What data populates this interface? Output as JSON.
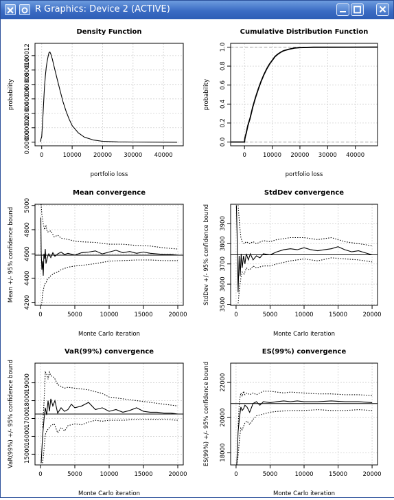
{
  "window": {
    "title": "R Graphics: Device 2 (ACTIVE)",
    "controls": [
      "close",
      "sticky",
      "minimize",
      "maximize",
      "close"
    ]
  },
  "chart_data": [
    {
      "type": "line",
      "title": "Density Function",
      "xlabel": "portfolio loss",
      "ylabel": "probability",
      "xlim": [
        -2200,
        46500
      ],
      "ylim": [
        -5e-06,
        0.000137
      ],
      "xticks": [
        0,
        10000,
        20000,
        30000,
        40000
      ],
      "xtick_labels": [
        "0",
        "10000",
        "20000",
        "30000",
        "40000"
      ],
      "yticks": [
        0,
        2e-05,
        4e-05,
        6e-05,
        8e-05,
        0.0001,
        0.00012
      ],
      "ytick_labels": [
        "0.00000",
        "0.00002",
        "0.00004",
        "0.00006",
        "0.00008",
        "0.00010",
        "0.00012"
      ],
      "grid": true,
      "series": [
        {
          "x": [
            -500,
            0,
            300,
            600,
            900,
            1200,
            1500,
            1800,
            2100,
            2400,
            2700,
            3000,
            3500,
            4000,
            5000,
            6000,
            7000,
            8000,
            9000,
            10000,
            12000,
            14000,
            17000,
            20000,
            25000,
            30000,
            35000,
            40000,
            44500
          ],
          "y": [
            5e-07,
            8e-06,
            2.8e-05,
            5.2e-05,
            7.5e-05,
            9.2e-05,
            0.000104,
            0.000112,
            0.000119,
            0.000124,
            0.000125,
            0.000122,
            0.000115,
            0.000106,
            8.9e-05,
            7.2e-05,
            5.6e-05,
            4.3e-05,
            3.2e-05,
            2.3e-05,
            1.3e-05,
            7e-06,
            3e-06,
            1.2e-06,
            4e-07,
            2e-07,
            1e-07,
            5e-08,
            0
          ]
        }
      ]
    },
    {
      "type": "line",
      "title": "Cumulative Distribution Function",
      "xlabel": "portfolio loss",
      "ylabel": "probability",
      "xlim": [
        -5000,
        48000
      ],
      "ylim": [
        -0.04,
        1.04
      ],
      "xticks": [
        0,
        10000,
        20000,
        30000,
        40000
      ],
      "xtick_labels": [
        "0",
        "10000",
        "20000",
        "30000",
        "40000"
      ],
      "yticks": [
        0,
        0.2,
        0.4,
        0.6,
        0.8,
        1.0
      ],
      "ytick_labels": [
        "0.0",
        "0.2",
        "0.4",
        "0.6",
        "0.8",
        "1.0"
      ],
      "grid": true,
      "reference_lines": [
        0,
        1
      ],
      "series": [
        {
          "x": [
            -5000,
            0,
            100,
            300,
            600,
            900,
            1200,
            1500,
            2000,
            2500,
            3000,
            3500,
            4000,
            5000,
            6000,
            7000,
            8000,
            9000,
            10000,
            11000,
            12000,
            13000,
            14000,
            15000,
            16000,
            17000,
            18000,
            20000,
            25000,
            48000
          ],
          "y": [
            0,
            0,
            0.03,
            0.06,
            0.09,
            0.13,
            0.17,
            0.2,
            0.25,
            0.31,
            0.37,
            0.42,
            0.47,
            0.56,
            0.64,
            0.71,
            0.77,
            0.82,
            0.86,
            0.9,
            0.925,
            0.945,
            0.96,
            0.97,
            0.978,
            0.984,
            0.99,
            0.995,
            0.999,
            1
          ]
        }
      ]
    },
    {
      "type": "line",
      "title": "Mean convergence",
      "xlabel": "Monte Carlo iteration",
      "ylabel": "Mean +/- 95% confidence bound",
      "xlim": [
        -800,
        20800
      ],
      "ylim": [
        4175,
        5010
      ],
      "xticks": [
        0,
        5000,
        10000,
        15000,
        20000
      ],
      "xtick_labels": [
        "0",
        "5000",
        "10000",
        "15000",
        "20000"
      ],
      "yticks": [
        4200,
        4400,
        4600,
        4800,
        5000
      ],
      "ytick_labels": [
        "4200",
        "4400",
        "4600",
        "4800",
        "5000"
      ],
      "grid": true,
      "reference_line": 4590,
      "series": [
        {
          "name": "estimate",
          "style": "solid",
          "x": [
            50,
            100,
            200,
            300,
            400,
            500,
            600,
            700,
            800,
            1000,
            1200,
            1500,
            1800,
            2100,
            2500,
            3000,
            3500,
            4000,
            5000,
            6000,
            7000,
            8000,
            9000,
            10000,
            11000,
            12000,
            13000,
            14000,
            15000,
            16000,
            17000,
            18000,
            19000,
            20000
          ],
          "y": [
            4900,
            4620,
            4470,
            4540,
            4420,
            4600,
            4560,
            4640,
            4520,
            4570,
            4600,
            4570,
            4610,
            4580,
            4600,
            4615,
            4595,
            4605,
            4590,
            4610,
            4615,
            4625,
            4600,
            4615,
            4630,
            4610,
            4620,
            4605,
            4615,
            4605,
            4600,
            4595,
            4595,
            4590
          ]
        },
        {
          "name": "upper bound",
          "style": "dotted",
          "x": [
            50,
            100,
            200,
            300,
            400,
            600,
            800,
            1000,
            1500,
            2000,
            2500,
            3000,
            4000,
            5000,
            6000,
            8000,
            10000,
            12000,
            14000,
            16000,
            18000,
            20000
          ],
          "y": [
            5010,
            5005,
            4920,
            4890,
            4850,
            4800,
            4830,
            4780,
            4790,
            4740,
            4755,
            4730,
            4720,
            4705,
            4700,
            4695,
            4680,
            4680,
            4670,
            4665,
            4650,
            4640
          ]
        },
        {
          "name": "lower bound",
          "style": "dotted",
          "x": [
            100,
            200,
            300,
            400,
            600,
            800,
            1000,
            1500,
            2000,
            2500,
            3000,
            4000,
            5000,
            6000,
            8000,
            10000,
            12000,
            14000,
            16000,
            18000,
            20000
          ],
          "y": [
            4175,
            4200,
            4270,
            4300,
            4350,
            4360,
            4390,
            4420,
            4440,
            4450,
            4470,
            4490,
            4500,
            4505,
            4520,
            4540,
            4545,
            4550,
            4550,
            4545,
            4545
          ]
        }
      ]
    },
    {
      "type": "line",
      "title": "StdDev convergence",
      "xlabel": "Monte Carlo iteration",
      "ylabel": "StdDev +/- 95% confidence bound",
      "xlim": [
        -800,
        20800
      ],
      "ylim": [
        3495,
        3995
      ],
      "xticks": [
        0,
        5000,
        10000,
        15000,
        20000
      ],
      "xtick_labels": [
        "0",
        "5000",
        "10000",
        "15000",
        "20000"
      ],
      "yticks": [
        3500,
        3600,
        3700,
        3800,
        3900
      ],
      "ytick_labels": [
        "3500",
        "3600",
        "3700",
        "3800",
        "3900"
      ],
      "grid": true,
      "reference_line": 3745,
      "series": [
        {
          "name": "estimate",
          "style": "solid",
          "x": [
            50,
            150,
            300,
            450,
            600,
            750,
            900,
            1100,
            1300,
            1500,
            1800,
            2100,
            2500,
            3000,
            3500,
            4000,
            5000,
            6000,
            7000,
            8000,
            9000,
            10000,
            11000,
            12000,
            13000,
            14000,
            15000,
            16000,
            17000,
            18000,
            19000,
            20000
          ],
          "y": [
            3990,
            3850,
            3560,
            3740,
            3640,
            3750,
            3680,
            3740,
            3700,
            3750,
            3720,
            3750,
            3720,
            3740,
            3730,
            3750,
            3745,
            3760,
            3770,
            3775,
            3770,
            3780,
            3770,
            3765,
            3770,
            3775,
            3785,
            3770,
            3760,
            3765,
            3755,
            3745
          ]
        },
        {
          "name": "upper bound",
          "style": "dotted",
          "x": [
            300,
            500,
            700,
            900,
            1200,
            1500,
            2000,
            2500,
            3000,
            4000,
            5000,
            6000,
            8000,
            10000,
            12000,
            14000,
            16000,
            18000,
            20000
          ],
          "y": [
            3990,
            3900,
            3830,
            3810,
            3800,
            3810,
            3800,
            3810,
            3800,
            3815,
            3810,
            3820,
            3830,
            3830,
            3820,
            3830,
            3810,
            3800,
            3790
          ]
        },
        {
          "name": "lower bound",
          "style": "dotted",
          "x": [
            300,
            500,
            700,
            900,
            1200,
            1500,
            2000,
            2500,
            3000,
            4000,
            5000,
            6000,
            8000,
            10000,
            12000,
            14000,
            16000,
            18000,
            20000
          ],
          "y": [
            3505,
            3580,
            3630,
            3660,
            3650,
            3680,
            3670,
            3690,
            3680,
            3690,
            3690,
            3700,
            3715,
            3725,
            3715,
            3730,
            3725,
            3720,
            3710
          ]
        }
      ]
    },
    {
      "type": "line",
      "title": "VaR(99%) convergence",
      "xlabel": "Monte Carlo iteration",
      "ylabel": "VaR(99%) +/- 95% confidence bound",
      "xlim": [
        -800,
        20800
      ],
      "ylim": [
        14400,
        20100
      ],
      "xticks": [
        0,
        5000,
        10000,
        15000,
        20000
      ],
      "xtick_labels": [
        "0",
        "5000",
        "10000",
        "15000",
        "20000"
      ],
      "yticks": [
        15000,
        16000,
        17000,
        18000,
        19000
      ],
      "ytick_labels": [
        "15000",
        "16000",
        "17000",
        "18000",
        "19000"
      ],
      "grid": true,
      "reference_line": 17250,
      "series": [
        {
          "name": "estimate",
          "style": "solid",
          "x": [
            100,
            300,
            500,
            700,
            900,
            1100,
            1300,
            1500,
            1800,
            2100,
            2500,
            3000,
            3500,
            4000,
            4500,
            5000,
            6000,
            7000,
            8000,
            9000,
            10000,
            11000,
            12000,
            13000,
            14000,
            15000,
            16000,
            17000,
            18000,
            19000,
            20000
          ],
          "y": [
            14500,
            16000,
            16900,
            17600,
            17200,
            18000,
            17400,
            18100,
            17700,
            18000,
            17300,
            17600,
            17400,
            17500,
            17800,
            17600,
            17700,
            17900,
            17500,
            17600,
            17400,
            17500,
            17350,
            17450,
            17600,
            17400,
            17350,
            17350,
            17300,
            17300,
            17250
          ]
        },
        {
          "name": "upper bound",
          "style": "dotted",
          "x": [
            300,
            500,
            700,
            900,
            1100,
            1300,
            1500,
            2000,
            2500,
            3000,
            3500,
            4000,
            5000,
            6000,
            7000,
            8000,
            9000,
            10000,
            12000,
            14000,
            16000,
            18000,
            20000
          ],
          "y": [
            16500,
            17800,
            19600,
            19500,
            19200,
            19600,
            19400,
            19300,
            18900,
            18800,
            18700,
            18750,
            18700,
            18650,
            18600,
            18500,
            18400,
            18200,
            18100,
            18000,
            17900,
            17800,
            17700
          ]
        },
        {
          "name": "lower bound",
          "style": "dotted",
          "x": [
            300,
            500,
            700,
            900,
            1100,
            1300,
            1500,
            2000,
            2500,
            3000,
            3500,
            4000,
            5000,
            6000,
            7000,
            8000,
            9000,
            10000,
            12000,
            14000,
            16000,
            18000,
            20000
          ],
          "y": [
            14500,
            15200,
            16100,
            16300,
            16400,
            16500,
            16600,
            16700,
            16200,
            16500,
            16300,
            16600,
            16700,
            16650,
            16800,
            16900,
            16850,
            16900,
            16900,
            16950,
            16950,
            16950,
            16900
          ]
        }
      ]
    },
    {
      "type": "line",
      "title": "ES(99%) convergence",
      "xlabel": "Monte Carlo iteration",
      "ylabel": "ES(99%) +/- 95% confidence bound",
      "xlim": [
        -800,
        20800
      ],
      "ylim": [
        17300,
        23100
      ],
      "xticks": [
        0,
        5000,
        10000,
        15000,
        20000
      ],
      "xtick_labels": [
        "0",
        "5000",
        "10000",
        "15000",
        "20000"
      ],
      "yticks": [
        18000,
        20000,
        22000
      ],
      "ytick_labels": [
        "18000",
        "20000",
        "22000"
      ],
      "grid": true,
      "reference_line": 20800,
      "series": [
        {
          "name": "estimate",
          "style": "solid",
          "x": [
            100,
            300,
            500,
            700,
            900,
            1100,
            1300,
            1600,
            2000,
            2500,
            3000,
            3500,
            4000,
            5000,
            6000,
            7000,
            8000,
            9000,
            10000,
            12000,
            14000,
            16000,
            18000,
            20000
          ],
          "y": [
            17300,
            19200,
            20000,
            20600,
            20400,
            20500,
            20700,
            20600,
            20300,
            20800,
            20900,
            20700,
            20900,
            20850,
            20900,
            20950,
            20900,
            20950,
            20900,
            20900,
            20950,
            20900,
            20900,
            20850
          ]
        },
        {
          "name": "upper bound",
          "style": "dotted",
          "x": [
            300,
            500,
            700,
            900,
            1100,
            1300,
            1600,
            2000,
            2500,
            3000,
            4000,
            5000,
            6000,
            7000,
            8000,
            10000,
            12000,
            14000,
            16000,
            18000,
            20000
          ],
          "y": [
            19500,
            21000,
            21400,
            21200,
            21500,
            21300,
            21400,
            21300,
            21400,
            21300,
            21500,
            21500,
            21450,
            21400,
            21450,
            21400,
            21350,
            21350,
            21300,
            21300,
            21250
          ]
        },
        {
          "name": "lower bound",
          "style": "dotted",
          "x": [
            100,
            300,
            500,
            700,
            900,
            1100,
            1300,
            1600,
            2000,
            2500,
            3000,
            4000,
            5000,
            6000,
            8000,
            10000,
            12000,
            14000,
            16000,
            18000,
            20000
          ],
          "y": [
            17300,
            17800,
            18800,
            19400,
            19300,
            19500,
            19700,
            19800,
            19600,
            19900,
            20100,
            20200,
            20300,
            20350,
            20400,
            20400,
            20450,
            20400,
            20400,
            20450,
            20400
          ]
        }
      ]
    }
  ]
}
